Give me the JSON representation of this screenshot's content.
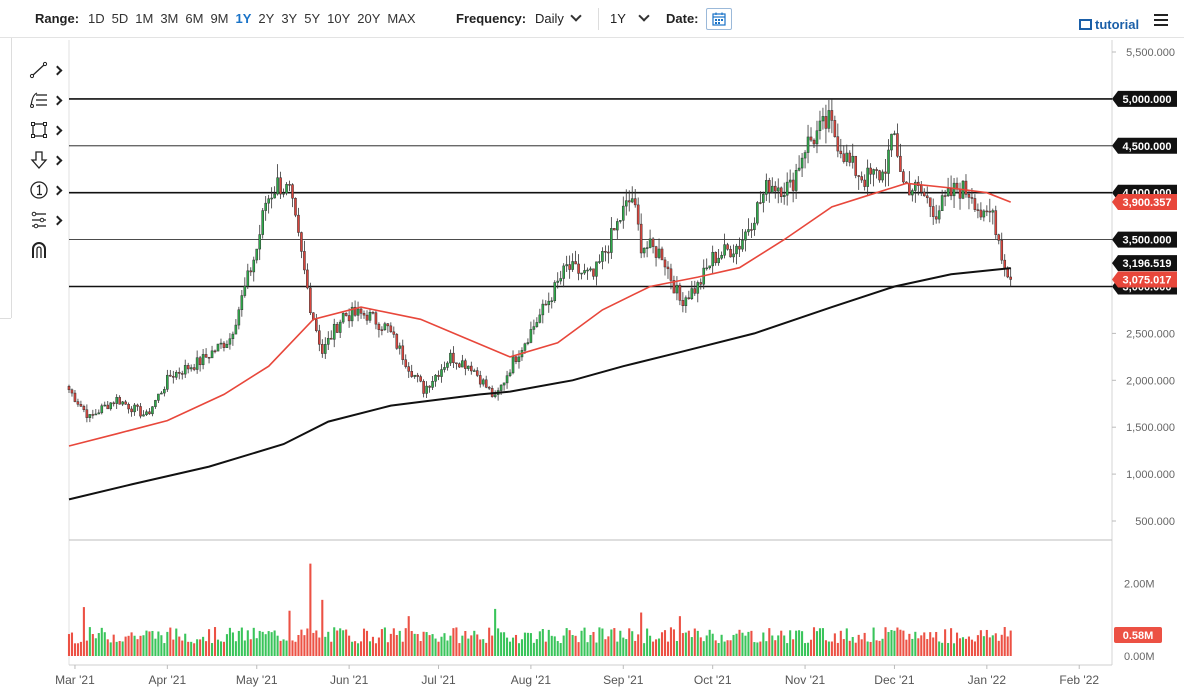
{
  "toolbar": {
    "range_label": "Range:",
    "ranges": [
      "1D",
      "5D",
      "1M",
      "3M",
      "6M",
      "9M",
      "1Y",
      "2Y",
      "3Y",
      "5Y",
      "10Y",
      "20Y",
      "MAX"
    ],
    "active_range": "1Y",
    "frequency_label": "Frequency:",
    "frequency_value": "Daily",
    "period_value": "1Y",
    "date_label": "Date:",
    "tutorial_label": "tutorial"
  },
  "drawing_tools": [
    "trend-line-icon",
    "fibonacci-icon",
    "rectangle-icon",
    "arrow-down-icon",
    "number-marker-icon",
    "pattern-icon",
    "magnet-icon"
  ],
  "colors": {
    "up": "#2eaa4a",
    "down": "#d9453d",
    "ma50": "#e8473b",
    "ma200": "#111111",
    "vol_up": "#39c45a",
    "vol_down": "#ec5144",
    "hline": "#111111"
  },
  "chart_data": {
    "type": "candlestick",
    "frequency": "Daily",
    "x_range": [
      "2021-02-27",
      "2022-02-12"
    ],
    "x_ticks": [
      {
        "date": "2021-03-01",
        "label": "Mar '21"
      },
      {
        "date": "2021-04-01",
        "label": "Apr '21"
      },
      {
        "date": "2021-05-01",
        "label": "May '21"
      },
      {
        "date": "2021-06-01",
        "label": "Jun '21"
      },
      {
        "date": "2021-07-01",
        "label": "Jul '21"
      },
      {
        "date": "2021-08-01",
        "label": "Aug '21"
      },
      {
        "date": "2021-09-01",
        "label": "Sep '21"
      },
      {
        "date": "2021-10-01",
        "label": "Oct '21"
      },
      {
        "date": "2021-11-01",
        "label": "Nov '21"
      },
      {
        "date": "2021-12-01",
        "label": "Dec '21"
      },
      {
        "date": "2022-01-01",
        "label": "Jan '22"
      },
      {
        "date": "2022-02-01",
        "label": "Feb '22"
      }
    ],
    "price_range": [
      0,
      5500
    ],
    "price_ticks": [
      {
        "value": 500,
        "label": "500.000"
      },
      {
        "value": 1000,
        "label": "1,000.000"
      },
      {
        "value": 1500,
        "label": "1,500.000"
      },
      {
        "value": 2000,
        "label": "2,000.000"
      },
      {
        "value": 2500,
        "label": "2,500.000"
      },
      {
        "value": 3000,
        "label": "3,000.000"
      },
      {
        "value": 3500,
        "label": "3,500.000"
      },
      {
        "value": 4000,
        "label": "4,000.000"
      },
      {
        "value": 4500,
        "label": "4,500.000"
      },
      {
        "value": 5000,
        "label": "5,000.000"
      },
      {
        "value": 5500,
        "label": "5,500.000"
      }
    ],
    "horizontal_lines": [
      {
        "value": 5000,
        "label": "5,000.000",
        "weight": "heavy"
      },
      {
        "value": 4500,
        "label": "4,500.000",
        "weight": "light"
      },
      {
        "value": 4000,
        "label": "4,000.000",
        "weight": "heavy"
      },
      {
        "value": 3500,
        "label": "3,500.000",
        "weight": "light"
      },
      {
        "value": 3000,
        "label": "3,000.000",
        "weight": "heavy"
      }
    ],
    "price_badges": [
      {
        "value": 3900.357,
        "label": "3,900.357",
        "series": "ma50"
      },
      {
        "value": 3196.519,
        "label": "3,196.519",
        "series": "ma200"
      },
      {
        "value": 3075.017,
        "label": "3,075.017",
        "series": "last"
      }
    ],
    "anchors": [
      {
        "date": "2021-02-27",
        "close": 1900
      },
      {
        "date": "2021-03-06",
        "close": 1600
      },
      {
        "date": "2021-03-10",
        "close": 1700
      },
      {
        "date": "2021-03-15",
        "close": 1800
      },
      {
        "date": "2021-03-25",
        "close": 1620
      },
      {
        "date": "2021-04-02",
        "close": 2050
      },
      {
        "date": "2021-04-12",
        "close": 2200
      },
      {
        "date": "2021-04-22",
        "close": 2450
      },
      {
        "date": "2021-05-01",
        "close": 3400
      },
      {
        "date": "2021-05-04",
        "close": 3900
      },
      {
        "date": "2021-05-08",
        "close": 4100
      },
      {
        "date": "2021-05-12",
        "close": 4000
      },
      {
        "date": "2021-05-15",
        "close": 3500
      },
      {
        "date": "2021-05-19",
        "close": 2800
      },
      {
        "date": "2021-05-23",
        "close": 2300
      },
      {
        "date": "2021-05-30",
        "close": 2700
      },
      {
        "date": "2021-06-07",
        "close": 2700
      },
      {
        "date": "2021-06-14",
        "close": 2550
      },
      {
        "date": "2021-06-21",
        "close": 2150
      },
      {
        "date": "2021-06-26",
        "close": 1900
      },
      {
        "date": "2021-07-05",
        "close": 2250
      },
      {
        "date": "2021-07-12",
        "close": 2150
      },
      {
        "date": "2021-07-20",
        "close": 1800
      },
      {
        "date": "2021-07-26",
        "close": 2200
      },
      {
        "date": "2021-08-06",
        "close": 2800
      },
      {
        "date": "2021-08-13",
        "close": 3200
      },
      {
        "date": "2021-08-22",
        "close": 3100
      },
      {
        "date": "2021-09-01",
        "close": 3800
      },
      {
        "date": "2021-09-04",
        "close": 3950
      },
      {
        "date": "2021-09-07",
        "close": 3450
      },
      {
        "date": "2021-09-14",
        "close": 3350
      },
      {
        "date": "2021-09-20",
        "close": 2850
      },
      {
        "date": "2021-09-26",
        "close": 3000
      },
      {
        "date": "2021-10-01",
        "close": 3300
      },
      {
        "date": "2021-10-10",
        "close": 3450
      },
      {
        "date": "2021-10-20",
        "close": 4100
      },
      {
        "date": "2021-10-27",
        "close": 4050
      },
      {
        "date": "2021-11-01",
        "close": 4500
      },
      {
        "date": "2021-11-09",
        "close": 4750
      },
      {
        "date": "2021-11-16",
        "close": 4300
      },
      {
        "date": "2021-11-21",
        "close": 4150
      },
      {
        "date": "2021-11-27",
        "close": 4200
      },
      {
        "date": "2021-12-01",
        "close": 4600
      },
      {
        "date": "2021-12-04",
        "close": 4100
      },
      {
        "date": "2021-12-10",
        "close": 4000
      },
      {
        "date": "2021-12-15",
        "close": 3800
      },
      {
        "date": "2021-12-22",
        "close": 4050
      },
      {
        "date": "2021-12-27",
        "close": 4000
      },
      {
        "date": "2021-12-31",
        "close": 3700
      },
      {
        "date": "2022-01-03",
        "close": 3800
      },
      {
        "date": "2022-01-05",
        "close": 3500
      },
      {
        "date": "2022-01-07",
        "close": 3200
      },
      {
        "date": "2022-01-09",
        "close": 3075
      }
    ],
    "ma50": [
      {
        "date": "2021-02-27",
        "value": 1300
      },
      {
        "date": "2021-03-15",
        "value": 1430
      },
      {
        "date": "2021-04-01",
        "value": 1570
      },
      {
        "date": "2021-04-20",
        "value": 1850
      },
      {
        "date": "2021-05-05",
        "value": 2150
      },
      {
        "date": "2021-05-20",
        "value": 2650
      },
      {
        "date": "2021-06-05",
        "value": 2780
      },
      {
        "date": "2021-06-25",
        "value": 2650
      },
      {
        "date": "2021-07-10",
        "value": 2450
      },
      {
        "date": "2021-07-25",
        "value": 2250
      },
      {
        "date": "2021-08-10",
        "value": 2400
      },
      {
        "date": "2021-08-25",
        "value": 2750
      },
      {
        "date": "2021-09-10",
        "value": 3000
      },
      {
        "date": "2021-09-26",
        "value": 3100
      },
      {
        "date": "2021-10-10",
        "value": 3200
      },
      {
        "date": "2021-10-25",
        "value": 3500
      },
      {
        "date": "2021-11-10",
        "value": 3850
      },
      {
        "date": "2021-11-25",
        "value": 4000
      },
      {
        "date": "2021-12-05",
        "value": 4100
      },
      {
        "date": "2021-12-20",
        "value": 4050
      },
      {
        "date": "2022-01-01",
        "value": 4000
      },
      {
        "date": "2022-01-09",
        "value": 3900
      }
    ],
    "ma200": [
      {
        "date": "2021-02-27",
        "value": 730
      },
      {
        "date": "2021-03-20",
        "value": 890
      },
      {
        "date": "2021-04-15",
        "value": 1080
      },
      {
        "date": "2021-05-10",
        "value": 1320
      },
      {
        "date": "2021-05-25",
        "value": 1560
      },
      {
        "date": "2021-06-15",
        "value": 1730
      },
      {
        "date": "2021-07-15",
        "value": 1850
      },
      {
        "date": "2021-07-25",
        "value": 1880
      },
      {
        "date": "2021-08-15",
        "value": 2000
      },
      {
        "date": "2021-09-01",
        "value": 2150
      },
      {
        "date": "2021-09-20",
        "value": 2300
      },
      {
        "date": "2021-10-15",
        "value": 2500
      },
      {
        "date": "2021-11-10",
        "value": 2780
      },
      {
        "date": "2021-12-01",
        "value": 3000
      },
      {
        "date": "2021-12-20",
        "value": 3130
      },
      {
        "date": "2022-01-09",
        "value": 3196
      }
    ],
    "volume": {
      "ticks": [
        {
          "value": 0,
          "label": "0.00M"
        },
        {
          "value": 2.0,
          "label": "2.00M"
        }
      ],
      "range": [
        0,
        2.65
      ],
      "last_label": "0.58M",
      "last_value": 0.58,
      "spikes": [
        {
          "date": "2021-03-04",
          "value": 1.35
        },
        {
          "date": "2021-05-12",
          "value": 1.25
        },
        {
          "date": "2021-05-19",
          "value": 2.55
        },
        {
          "date": "2021-05-23",
          "value": 1.55
        },
        {
          "date": "2021-06-21",
          "value": 1.1
        },
        {
          "date": "2021-07-20",
          "value": 1.3
        },
        {
          "date": "2021-09-07",
          "value": 1.2
        },
        {
          "date": "2021-09-20",
          "value": 1.1
        },
        {
          "date": "2022-01-07",
          "value": 0.8
        }
      ]
    }
  }
}
